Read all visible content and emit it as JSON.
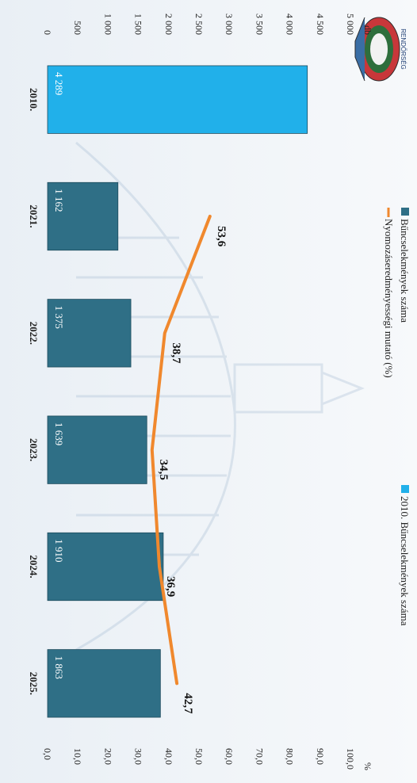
{
  "chart_data": {
    "type": "bar",
    "categories": [
      "2010.",
      "2021.",
      "2022.",
      "2023.",
      "2024.",
      "2025."
    ],
    "series": [
      {
        "name": "Bűncselekmények száma",
        "type": "bar",
        "axis": "left",
        "values": [
          4289,
          1162,
          1375,
          1639,
          1910,
          1863
        ],
        "labels": [
          "4 289",
          "1 162",
          "1 375",
          "1 639",
          "1 910",
          "1 863"
        ]
      },
      {
        "name": "Nyomozáseredményességi mutató (%)",
        "type": "line",
        "axis": "right",
        "values": [
          null,
          53.6,
          38.7,
          34.5,
          36.9,
          42.7
        ],
        "labels": [
          "",
          "53,6",
          "38,7",
          "34,5",
          "36,9",
          "42,7"
        ]
      }
    ],
    "legend_extra": "2010. Bűncselekmények száma",
    "y_left": {
      "unit": "db",
      "range": [
        0,
        5000
      ],
      "ticks": [
        "0",
        "500",
        "1 000",
        "1 500",
        "2 000",
        "2 500",
        "3 000",
        "3 500",
        "4 000",
        "4 500",
        "5 000"
      ]
    },
    "y_right": {
      "unit": "%",
      "range": [
        0,
        100
      ],
      "ticks": [
        "0,0",
        "10,0",
        "20,0",
        "30,0",
        "40,0",
        "50,0",
        "60,0",
        "70,0",
        "80,0",
        "90,0",
        "100,0"
      ]
    },
    "legend_position": "top",
    "grid": false
  },
  "colors": {
    "bar": "#2f6f86",
    "bar_highlight": "#21b0ea",
    "line": "#f0882d",
    "label_text": "#ffffff",
    "axis_text": "#222222"
  },
  "logo": {
    "text": "RENDŐRSÉG"
  }
}
